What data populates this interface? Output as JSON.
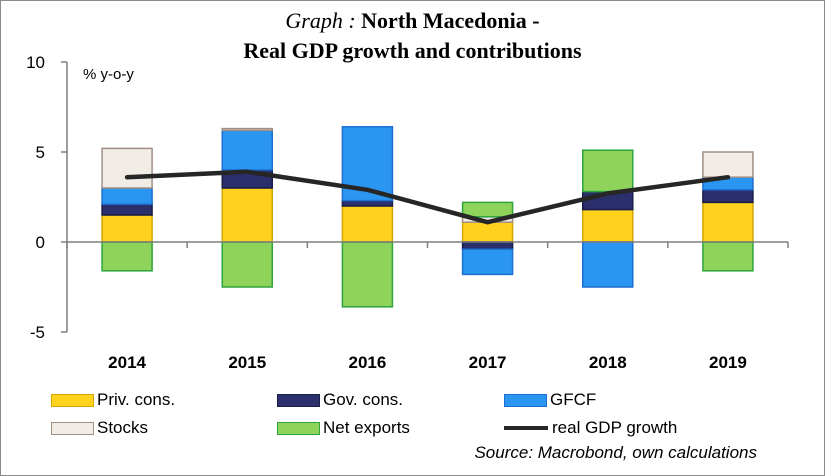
{
  "title": {
    "prefix": "Graph :",
    "main": "North Macedonia -",
    "line2": "Real GDP growth and contributions"
  },
  "source": "Source: Macrobond, own calculations",
  "chart_data": {
    "type": "bar",
    "stacked": true,
    "title": "Graph : North Macedonia - Real GDP growth and contributions",
    "ylabel": "% y-o-y",
    "ylim": [
      -5,
      10
    ],
    "yticks": [
      -5,
      0,
      5,
      10
    ],
    "categories": [
      "2014",
      "2015",
      "2016",
      "2017",
      "2018",
      "2019"
    ],
    "series": [
      {
        "name": "Priv. cons.",
        "color": "#ffd21e",
        "border": "#d4a500",
        "values": [
          1.5,
          3.0,
          2.0,
          1.1,
          1.8,
          2.2
        ]
      },
      {
        "name": "Gov. cons.",
        "color": "#2b2f6b",
        "border": "#1a1d48",
        "values": [
          0.6,
          1.0,
          0.3,
          -0.4,
          1.0,
          0.7
        ]
      },
      {
        "name": "GFCF",
        "color": "#2b96f2",
        "border": "#1a6fd0",
        "values": [
          0.9,
          2.2,
          4.1,
          -1.4,
          -2.5,
          0.7
        ]
      },
      {
        "name": "Stocks",
        "color": "#f2ece6",
        "border": "#a08f85",
        "values": [
          2.2,
          0.1,
          0.0,
          0.3,
          0.0,
          1.4
        ]
      },
      {
        "name": "Net exports",
        "color": "#8ed45a",
        "border": "#2fa33c",
        "values": [
          -1.6,
          -2.5,
          -3.6,
          0.8,
          2.3,
          -1.6
        ]
      }
    ],
    "line": {
      "name": "real GDP growth",
      "color": "#262626",
      "values": [
        3.6,
        3.9,
        2.9,
        1.1,
        2.7,
        3.6
      ]
    },
    "legend_position": "bottom"
  }
}
